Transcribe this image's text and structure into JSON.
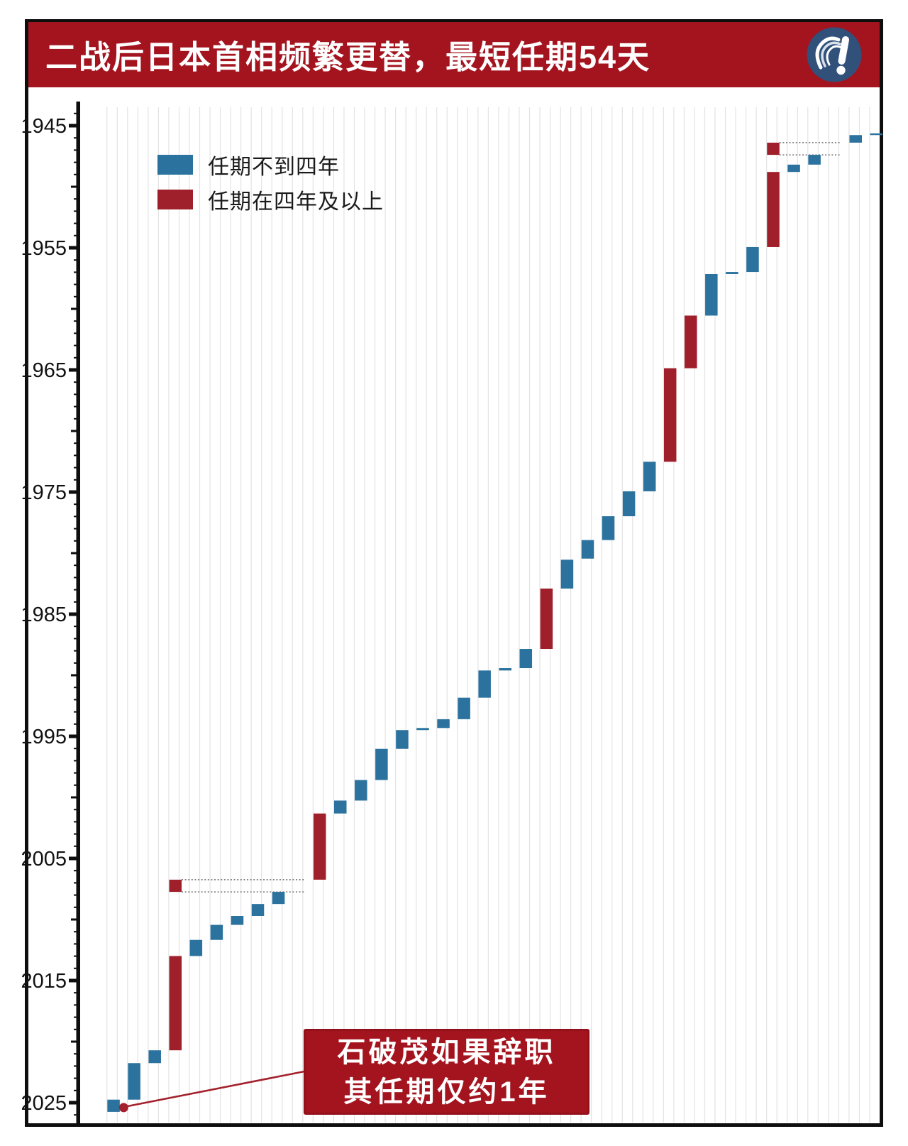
{
  "header": {
    "title": "二战后日本首相频繁更替，最短任期54天",
    "background": "#A3141F"
  },
  "legend": {
    "items": [
      {
        "label": "任期不到四年",
        "color": "#2B739E"
      },
      {
        "label": "任期在四年及以上",
        "color": "#9F202B"
      }
    ]
  },
  "annotation": {
    "line1": "石破茂如果辞职",
    "line2": "其任期仅约1年",
    "background": "#A3141F",
    "accent": "#A3212C"
  },
  "chart_data": {
    "type": "bar",
    "subtype": "waterfall-gantt",
    "title": "二战后日本首相频繁更替，最短任期54天",
    "y_axis": {
      "ticks": [
        1945,
        1955,
        1965,
        1975,
        1985,
        1995,
        2005,
        2015,
        2025
      ],
      "range": [
        1944,
        2027
      ],
      "inverted": true
    },
    "grid": "vertical-light",
    "legend_position": "top-left-inside",
    "colors": {
      "short_term": "#2B739E",
      "long_term": "#9F202B",
      "axis": "#0e0e0e",
      "grid": "#E3E3E3",
      "bridge": "#555555"
    },
    "slots": [
      {
        "slot": 1,
        "category": "short",
        "segments": [
          [
            2024.75,
            2025.75
          ]
        ]
      },
      {
        "slot": 2,
        "category": "short",
        "segments": [
          [
            2021.76,
            2024.75
          ]
        ]
      },
      {
        "slot": 3,
        "category": "short",
        "segments": [
          [
            2020.71,
            2021.76
          ]
        ]
      },
      {
        "slot": 4,
        "category": "long",
        "segments": [
          [
            2006.74,
            2007.74
          ],
          [
            2012.99,
            2020.71
          ]
        ],
        "bridge_to_slot": 10
      },
      {
        "slot": 5,
        "category": "short",
        "segments": [
          [
            2011.67,
            2012.99
          ]
        ]
      },
      {
        "slot": 6,
        "category": "short",
        "segments": [
          [
            2010.44,
            2011.67
          ]
        ]
      },
      {
        "slot": 7,
        "category": "short",
        "segments": [
          [
            2009.71,
            2010.44
          ]
        ]
      },
      {
        "slot": 8,
        "category": "short",
        "segments": [
          [
            2008.73,
            2009.71
          ]
        ]
      },
      {
        "slot": 9,
        "category": "short",
        "segments": [
          [
            2007.74,
            2008.73
          ]
        ]
      },
      {
        "slot": 10,
        "category": "gap",
        "segments": []
      },
      {
        "slot": 11,
        "category": "long",
        "segments": [
          [
            2001.32,
            2006.74
          ]
        ]
      },
      {
        "slot": 12,
        "category": "short",
        "segments": [
          [
            2000.26,
            2001.32
          ]
        ]
      },
      {
        "slot": 13,
        "category": "short",
        "segments": [
          [
            1998.58,
            2000.26
          ]
        ]
      },
      {
        "slot": 14,
        "category": "short",
        "segments": [
          [
            1996.03,
            1998.58
          ]
        ]
      },
      {
        "slot": 15,
        "category": "short",
        "segments": [
          [
            1994.49,
            1996.03
          ]
        ]
      },
      {
        "slot": 16,
        "category": "short",
        "segments": [
          [
            1994.32,
            1994.49
          ]
        ]
      },
      {
        "slot": 17,
        "category": "short",
        "segments": [
          [
            1993.6,
            1994.32
          ]
        ]
      },
      {
        "slot": 18,
        "category": "short",
        "segments": [
          [
            1991.84,
            1993.6
          ]
        ]
      },
      {
        "slot": 19,
        "category": "short",
        "segments": [
          [
            1989.61,
            1991.84
          ]
        ]
      },
      {
        "slot": 20,
        "category": "short",
        "segments": [
          [
            1989.42,
            1989.61
          ]
        ]
      },
      {
        "slot": 21,
        "category": "short",
        "segments": [
          [
            1987.85,
            1989.42
          ]
        ]
      },
      {
        "slot": 22,
        "category": "long",
        "segments": [
          [
            1982.9,
            1987.85
          ]
        ]
      },
      {
        "slot": 23,
        "category": "short",
        "segments": [
          [
            1980.54,
            1982.9
          ]
        ]
      },
      {
        "slot": 24,
        "category": "short",
        "segments": [
          [
            1978.93,
            1980.45
          ]
        ]
      },
      {
        "slot": 25,
        "category": "short",
        "segments": [
          [
            1976.98,
            1978.93
          ]
        ]
      },
      {
        "slot": 26,
        "category": "short",
        "segments": [
          [
            1974.94,
            1976.98
          ]
        ]
      },
      {
        "slot": 27,
        "category": "short",
        "segments": [
          [
            1972.52,
            1974.94
          ]
        ]
      },
      {
        "slot": 28,
        "category": "long",
        "segments": [
          [
            1964.86,
            1972.52
          ]
        ]
      },
      {
        "slot": 29,
        "category": "long",
        "segments": [
          [
            1960.55,
            1964.86
          ]
        ]
      },
      {
        "slot": 30,
        "category": "short",
        "segments": [
          [
            1957.15,
            1960.55
          ]
        ]
      },
      {
        "slot": 31,
        "category": "short",
        "segments": [
          [
            1956.98,
            1957.15
          ]
        ]
      },
      {
        "slot": 32,
        "category": "short",
        "segments": [
          [
            1954.94,
            1956.98
          ]
        ]
      },
      {
        "slot": 33,
        "category": "long",
        "segments": [
          [
            1946.39,
            1947.39
          ],
          [
            1948.79,
            1954.94
          ]
        ],
        "bridge_to_slot": 36
      },
      {
        "slot": 34,
        "category": "short",
        "segments": [
          [
            1948.19,
            1948.79
          ]
        ]
      },
      {
        "slot": 35,
        "category": "short",
        "segments": [
          [
            1947.39,
            1948.19
          ]
        ]
      },
      {
        "slot": 36,
        "category": "gap",
        "segments": []
      },
      {
        "slot": 37,
        "category": "short",
        "segments": [
          [
            1945.77,
            1946.39
          ]
        ]
      },
      {
        "slot": 38,
        "category": "short",
        "segments": [
          [
            1945.63,
            1945.77
          ]
        ]
      }
    ],
    "callout": {
      "target_slot": 1,
      "dot_year": 2025.4
    }
  }
}
